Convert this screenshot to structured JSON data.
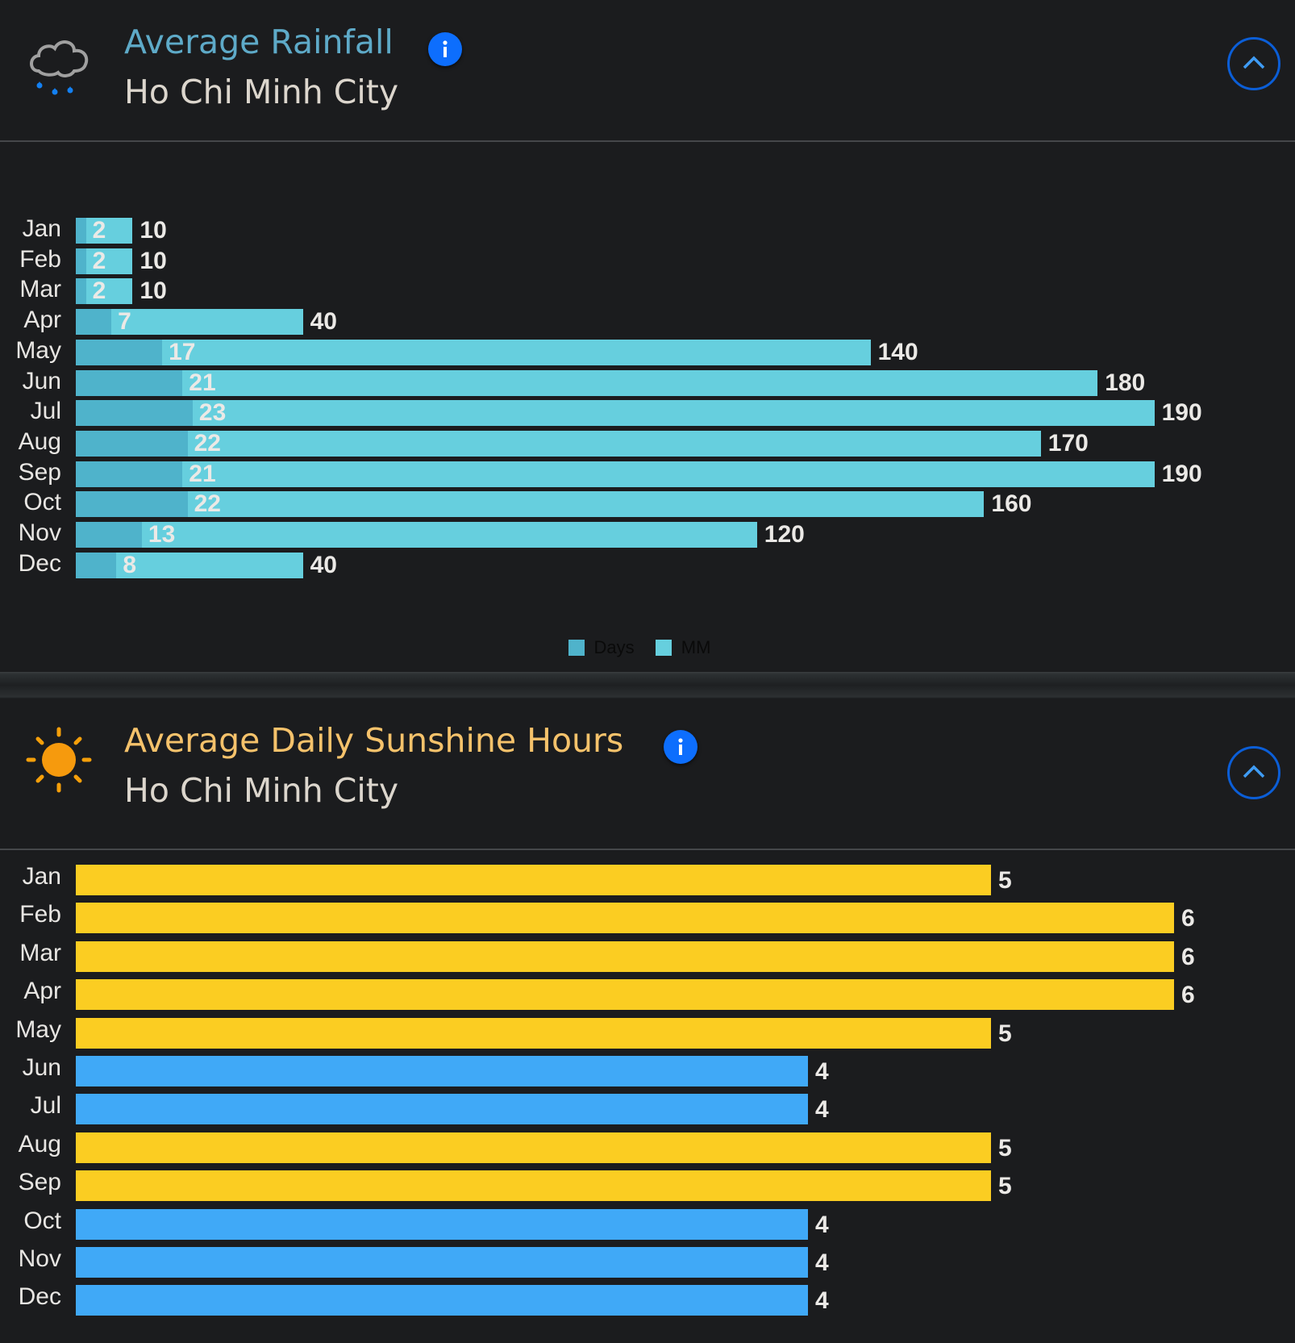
{
  "rainfall": {
    "title": "Average Rainfall",
    "subtitle": "Ho Chi Minh City",
    "title_color": "#5eaac8",
    "icon": "cloud-rain-icon",
    "info_icon": "info-icon",
    "collapse_icon": "chevron-up-icon",
    "colors": {
      "days": "#4fb3cb",
      "mm": "#66cfde"
    },
    "legend": [
      {
        "label": "Days",
        "color": "#4fb3cb"
      },
      {
        "label": "MM",
        "color": "#66cfde"
      }
    ]
  },
  "sunshine": {
    "title": "Average Daily Sunshine Hours",
    "subtitle": "Ho Chi Minh City",
    "title_color": "#f5c26b",
    "icon": "sun-icon",
    "info_icon": "info-icon",
    "collapse_icon": "chevron-up-icon",
    "colors": {
      "high": "#fbcd22",
      "low": "#40a9f7"
    }
  },
  "chart_data": [
    {
      "type": "bar",
      "orientation": "horizontal",
      "title": "Average Rainfall",
      "categories": [
        "Jan",
        "Feb",
        "Mar",
        "Apr",
        "May",
        "Jun",
        "Jul",
        "Aug",
        "Sep",
        "Oct",
        "Nov",
        "Dec"
      ],
      "series": [
        {
          "name": "Days",
          "values": [
            2,
            2,
            2,
            7,
            17,
            21,
            23,
            22,
            21,
            22,
            13,
            8
          ]
        },
        {
          "name": "MM",
          "values": [
            10,
            10,
            10,
            40,
            140,
            180,
            190,
            170,
            190,
            160,
            120,
            40
          ]
        }
      ],
      "legend_position": "bottom",
      "grid": false
    },
    {
      "type": "bar",
      "orientation": "horizontal",
      "title": "Average Daily Sunshine Hours",
      "categories": [
        "Jan",
        "Feb",
        "Mar",
        "Apr",
        "May",
        "Jun",
        "Jul",
        "Aug",
        "Sep",
        "Oct",
        "Nov",
        "Dec"
      ],
      "values": [
        5,
        6,
        6,
        6,
        5,
        4,
        4,
        5,
        5,
        4,
        4,
        4
      ],
      "grid": false
    }
  ]
}
